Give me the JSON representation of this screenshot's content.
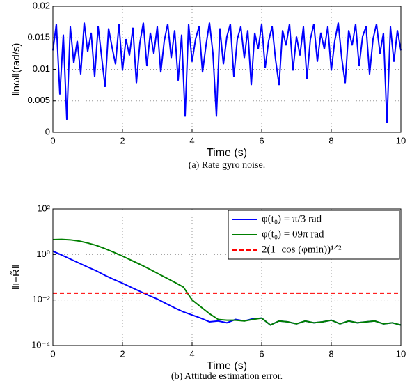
{
  "chart_data": [
    {
      "type": "line",
      "caption": "(a) Rate gyro noise.",
      "xlabel": "Time (s)",
      "ylabel": "‖nω‖(rad/s)",
      "xlim": [
        0,
        10
      ],
      "xticks": [
        0,
        2,
        4,
        6,
        8,
        10
      ],
      "ylim": [
        0,
        0.02
      ],
      "yticks": [
        0,
        0.005,
        0.01,
        0.015,
        0.02
      ],
      "grid": true,
      "log_y": false,
      "series": [
        {
          "name": null,
          "color": "#0000ff",
          "dash": false,
          "x": [
            0,
            0.1,
            0.2,
            0.3,
            0.4,
            0.5,
            0.6,
            0.7,
            0.8,
            0.9,
            1,
            1.1,
            1.2,
            1.3,
            1.4,
            1.5,
            1.6,
            1.7,
            1.8,
            1.9,
            2,
            2.1,
            2.2,
            2.3,
            2.4,
            2.5,
            2.6,
            2.7,
            2.8,
            2.9,
            3,
            3.1,
            3.2,
            3.3,
            3.4,
            3.5,
            3.6,
            3.7,
            3.8,
            3.9,
            4,
            4.1,
            4.2,
            4.3,
            4.4,
            4.5,
            4.6,
            4.7,
            4.8,
            4.9,
            5,
            5.1,
            5.2,
            5.3,
            5.4,
            5.5,
            5.6,
            5.7,
            5.8,
            5.9,
            6,
            6.1,
            6.2,
            6.3,
            6.4,
            6.5,
            6.6,
            6.7,
            6.8,
            6.9,
            7,
            7.1,
            7.2,
            7.3,
            7.4,
            7.5,
            7.6,
            7.7,
            7.8,
            7.9,
            8,
            8.1,
            8.2,
            8.3,
            8.4,
            8.5,
            8.6,
            8.7,
            8.8,
            8.9,
            9,
            9.1,
            9.2,
            9.3,
            9.4,
            9.5,
            9.6,
            9.7,
            9.8,
            9.9,
            10
          ],
          "values": [
            0.013,
            0.0172,
            0.006,
            0.0155,
            0.002,
            0.0168,
            0.011,
            0.0145,
            0.0092,
            0.0174,
            0.0128,
            0.0158,
            0.0088,
            0.0168,
            0.012,
            0.0072,
            0.0165,
            0.0135,
            0.0108,
            0.0172,
            0.0098,
            0.0148,
            0.0122,
            0.0166,
            0.0078,
            0.0142,
            0.0174,
            0.0105,
            0.0158,
            0.0125,
            0.0168,
            0.0095,
            0.0145,
            0.0172,
            0.0118,
            0.0162,
            0.0082,
            0.0155,
            0.0025,
            0.0172,
            0.0112,
            0.0148,
            0.0168,
            0.0095,
            0.0138,
            0.0174,
            0.0125,
            0.0025,
            0.0165,
            0.0108,
            0.0152,
            0.0172,
            0.0088,
            0.0148,
            0.0168,
            0.0118,
            0.0162,
            0.0075,
            0.0158,
            0.0132,
            0.0172,
            0.0102,
            0.0145,
            0.0168,
            0.0115,
            0.0075,
            0.0162,
            0.0138,
            0.0172,
            0.0098,
            0.0152,
            0.0122,
            0.0168,
            0.0085,
            0.0148,
            0.0172,
            0.0112,
            0.0158,
            0.0132,
            0.0168,
            0.0098,
            0.0145,
            0.0174,
            0.0118,
            0.0078,
            0.0162,
            0.0138,
            0.0172,
            0.0105,
            0.0152,
            0.0168,
            0.0092,
            0.0148,
            0.0172,
            0.0125,
            0.0158,
            0.0015,
            0.0168,
            0.0112,
            0.0162,
            0.013
          ]
        }
      ]
    },
    {
      "type": "line",
      "caption": "(b) Attitude estimation error.",
      "xlabel": "Time (s)",
      "ylabel": "‖I−R̃‖",
      "xlim": [
        0,
        10
      ],
      "xticks": [
        0,
        2,
        4,
        6,
        8,
        10
      ],
      "ylim": [
        0.0001,
        100
      ],
      "yticks": [
        {
          "value": 0.0001,
          "label": "10⁻⁴"
        },
        {
          "value": 0.01,
          "label": "10⁻²"
        },
        {
          "value": 1,
          "label": "10⁰"
        },
        {
          "value": 100,
          "label": "10²"
        }
      ],
      "grid": true,
      "log_y": true,
      "legend": "upper right",
      "series": [
        {
          "name": "φ(t₀) = π/3 rad",
          "color": "#0000ff",
          "dash": false,
          "x": [
            0,
            0.25,
            0.5,
            0.75,
            1,
            1.25,
            1.5,
            1.75,
            2,
            2.25,
            2.5,
            2.75,
            3,
            3.25,
            3.5,
            3.75,
            4,
            4.25,
            4.5,
            4.75,
            5,
            5.25,
            5.5,
            5.75,
            6,
            6.25,
            6.5,
            6.75,
            7,
            7.25,
            7.5,
            7.75,
            8,
            8.25,
            8.5,
            8.75,
            9,
            9.25,
            9.5,
            9.75,
            10
          ],
          "values": [
            1.4,
            0.95,
            0.63,
            0.42,
            0.28,
            0.19,
            0.12,
            0.08,
            0.055,
            0.036,
            0.024,
            0.016,
            0.011,
            0.007,
            0.0045,
            0.003,
            0.0022,
            0.0016,
            0.0011,
            0.0012,
            0.001,
            0.0014,
            0.0012,
            0.0015,
            0.0016,
            0.0008,
            0.0012,
            0.0011,
            0.0009,
            0.0012,
            0.001,
            0.0011,
            0.0013,
            0.0009,
            0.0012,
            0.001,
            0.0011,
            0.0012,
            0.0009,
            0.001,
            0.0008
          ]
        },
        {
          "name": "φ(t₀) = 09π rad",
          "color": "#007f00",
          "dash": false,
          "x": [
            0,
            0.25,
            0.5,
            0.75,
            1,
            1.25,
            1.5,
            1.75,
            2,
            2.25,
            2.5,
            2.75,
            3,
            3.25,
            3.5,
            3.75,
            4,
            4.25,
            4.5,
            4.75,
            5,
            5.25,
            5.5,
            5.75,
            6,
            6.25,
            6.5,
            6.75,
            7,
            7.25,
            7.5,
            7.75,
            8,
            8.25,
            8.5,
            8.75,
            9,
            9.25,
            9.5,
            9.75,
            10
          ],
          "values": [
            4.5,
            4.6,
            4.4,
            3.9,
            3.2,
            2.5,
            1.8,
            1.25,
            0.85,
            0.56,
            0.37,
            0.24,
            0.15,
            0.095,
            0.06,
            0.037,
            0.01,
            0.005,
            0.0025,
            0.0014,
            0.0013,
            0.0013,
            0.0012,
            0.0014,
            0.0016,
            0.0008,
            0.0012,
            0.0011,
            0.0009,
            0.0012,
            0.001,
            0.0011,
            0.0013,
            0.0009,
            0.0012,
            0.001,
            0.0011,
            0.0012,
            0.0009,
            0.001,
            0.0008
          ]
        },
        {
          "name": "2(1−cos (φmin))¹ᐟ²",
          "color": "#ff0000",
          "dash": true,
          "x": [
            0,
            10
          ],
          "values": [
            0.02,
            0.02
          ]
        }
      ]
    }
  ]
}
